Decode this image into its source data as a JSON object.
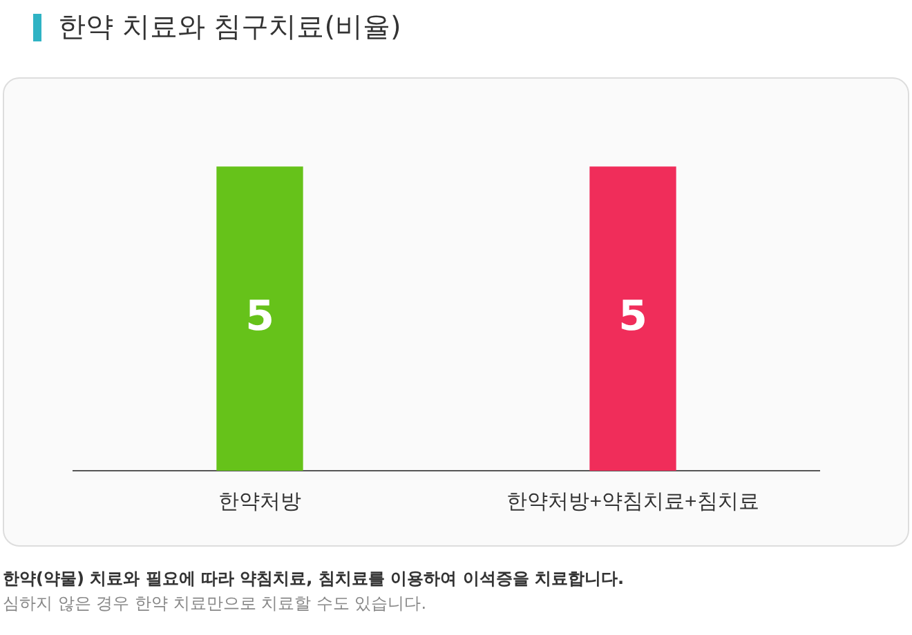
{
  "chart_data": {
    "type": "bar",
    "title": "한약 치료와 침구치료(비율)",
    "categories": [
      "한약처방",
      "한약처방+약침치료+침치료"
    ],
    "values": [
      5,
      5
    ],
    "colors": [
      "#66c21a",
      "#f02d5a"
    ],
    "data_labels": true,
    "legend": false,
    "annotations": [
      "한약(약물) 치료와 필요에 따라 약침치료, 침치료를 이용하여 이석증을 치료합니다.",
      "심하지 않은 경우 한약 치료만으로 치료할 수도 있습니다."
    ]
  }
}
